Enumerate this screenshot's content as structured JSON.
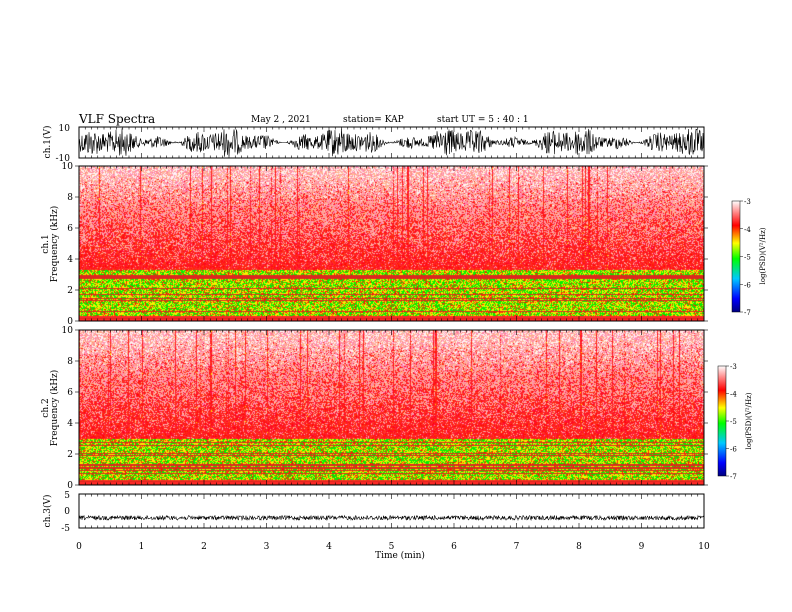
{
  "header": {
    "title": "VLF Spectra",
    "date": "May 2 , 2021",
    "station": "station= KAP",
    "start_time": "start UT = 5 : 40 : 1"
  },
  "chart_data": [
    {
      "type": "line",
      "title": "",
      "ylabel": "ch.1(V)",
      "xlim": [
        0,
        10
      ],
      "ylim": [
        -10,
        10
      ],
      "y_ticks": [
        "10",
        "-10"
      ],
      "color": "#000000",
      "description_values": {
        "min": -10,
        "max": 10
      }
    },
    {
      "type": "heatmap",
      "ylabel": "ch.1 Frequency (kHz)",
      "ylabel_channel": "ch.1",
      "ylabel_quantity": "Frequency (kHz)",
      "xlim": [
        0,
        10
      ],
      "ylim": [
        0,
        10
      ],
      "y_ticks": [
        "0",
        "2",
        "4",
        "6",
        "8",
        "10"
      ],
      "colorbar": {
        "label": "log(PSD)(V²/Hz)",
        "range": [
          -7,
          -3
        ],
        "ticks": [
          "-3",
          "-4",
          "-5",
          "-6",
          "-7"
        ]
      },
      "bands_khz": {
        "quiet_top": 3.3,
        "active_bottom": 0.1
      }
    },
    {
      "type": "heatmap",
      "ylabel": "ch.2 Frequency (kHz)",
      "ylabel_channel": "ch.2",
      "ylabel_quantity": "Frequency (kHz)",
      "xlim": [
        0,
        10
      ],
      "ylim": [
        0,
        10
      ],
      "y_ticks": [
        "0",
        "2",
        "4",
        "6",
        "8",
        "10"
      ],
      "colorbar": {
        "label": "log(PSD)(V²/Hz)",
        "range": [
          -7,
          -3
        ],
        "ticks": [
          "-3",
          "-4",
          "-5",
          "-6",
          "-7"
        ]
      },
      "bands_khz": {
        "quiet_top": 3.0,
        "active_bottom": 0.1
      }
    },
    {
      "type": "line",
      "ylabel": "ch.3(V)",
      "xlim": [
        0,
        10
      ],
      "ylim": [
        -5,
        5
      ],
      "y_ticks": [
        "5",
        "0",
        "-5"
      ],
      "color": "#000000",
      "level": -2
    }
  ],
  "xaxis": {
    "label": "Time (min)",
    "ticks": [
      "0",
      "1",
      "2",
      "3",
      "4",
      "5",
      "6",
      "7",
      "8",
      "9",
      "10"
    ]
  },
  "colors": {
    "colormap": [
      "#000080",
      "#0000ff",
      "#00b0ff",
      "#00ff00",
      "#ffff00",
      "#ff0000",
      "#ffffff"
    ]
  }
}
